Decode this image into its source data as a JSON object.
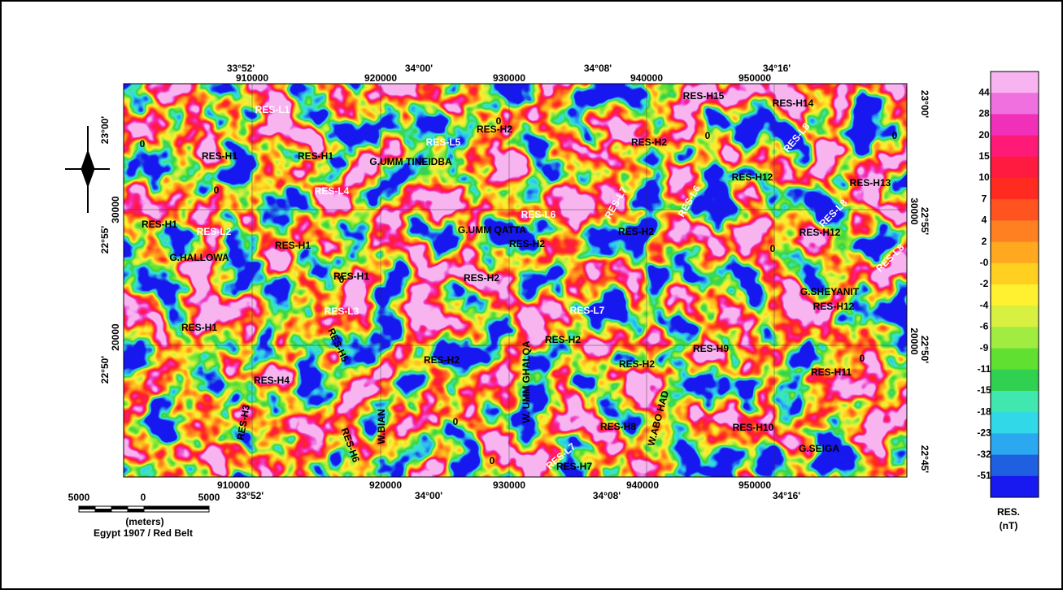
{
  "top_degrees": [
    "33°52'",
    "34°00'",
    "34°08'",
    "34°16'"
  ],
  "top_eastings": [
    "910000",
    "920000",
    "930000",
    "940000",
    "950000"
  ],
  "bottom_eastings": [
    "910000",
    "920000",
    "930000",
    "940000",
    "950000"
  ],
  "bottom_degrees": [
    "33°52'",
    "34°00'",
    "34°08'",
    "34°16'"
  ],
  "left_labels": [
    "23°00'",
    "30000",
    "22°55'",
    "20000",
    "22°50'"
  ],
  "right_labels": [
    "23°00'",
    "30000",
    "22°55'",
    "20000",
    "22°50'",
    "22°45'"
  ],
  "map_labels": [
    "RES-L1",
    "RES-H15",
    "RES-H14",
    "RES-H2",
    "RES-L5",
    "RES-H2",
    "RES-L8",
    "RES-H1",
    "RES-H1",
    "G.UMM TINEIDBA",
    "RES-H12",
    "RES-H13",
    "RES-L4",
    "RES-L7",
    "RES-L6",
    "RES-L6",
    "RES-L8",
    "RES-H1",
    "RES-L2",
    "G.UMM QATTA",
    "RES-H2",
    "RES-H12",
    "RES-H2",
    "RES-H1",
    "G.HALLOWA",
    "RES-L8",
    "RES-H1",
    "RES-H2",
    "G.SHEYANIT",
    "RES-H12",
    "RES-L3",
    "RES-L7",
    "RES-H1",
    "RES-H5",
    "RES-H2",
    "RES-H9",
    "RES-H2",
    "RES-H2",
    "RES-H11",
    "RES-H4",
    "W. UMM GHALQA",
    "RES-H3",
    "W.BIAN",
    "W.ABO HAD",
    "RES-H8",
    "RES-H10",
    "G.SEIGA",
    "RES-H6",
    "RES-L7",
    "RES-H7"
  ],
  "contour_labels": [
    "0",
    "0",
    "0",
    "0",
    "0",
    "0",
    "0",
    "0",
    "0",
    "0"
  ],
  "scale_bar": {
    "ticks": [
      "5000",
      "0",
      "5000"
    ],
    "unit": "(meters)",
    "datum": "Egypt 1907 / Red Belt"
  },
  "legend": {
    "title": "RES.",
    "unit": "(nT)",
    "labels": [
      "44",
      "28",
      "20",
      "15",
      "10",
      "7",
      "4",
      "2",
      "-0",
      "-2",
      "-4",
      "-6",
      "-9",
      "-11",
      "-15",
      "-18",
      "-23",
      "-32",
      "-51"
    ],
    "colors": [
      "#f8b4f0",
      "#f070e0",
      "#f030b8",
      "#ff1a78",
      "#ff1a40",
      "#ff2a20",
      "#ff5420",
      "#ff8020",
      "#ffa820",
      "#ffd020",
      "#fff030",
      "#d8f040",
      "#a0ec40",
      "#60e030",
      "#30d050",
      "#40e8b0",
      "#30d8e8",
      "#2aa8f0",
      "#1e60e0",
      "#1818f0"
    ]
  }
}
